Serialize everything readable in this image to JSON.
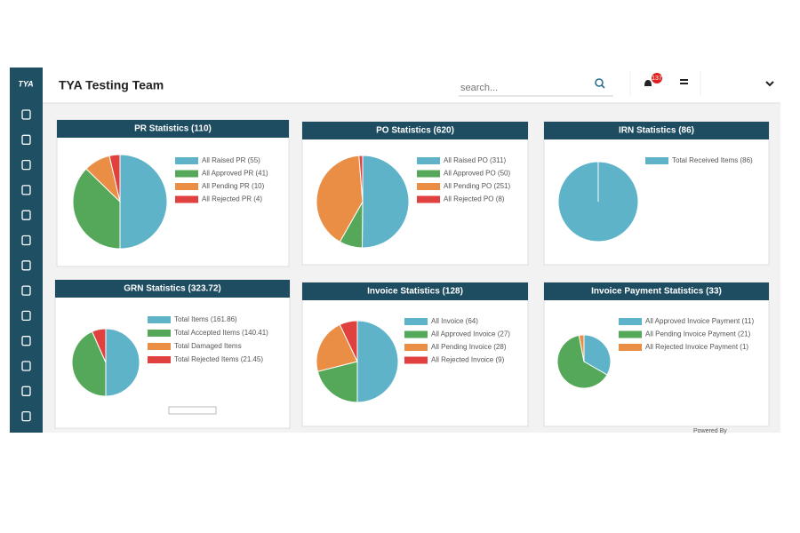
{
  "header": {
    "logo": "TYA",
    "title": "TYA Testing Team",
    "search_placeholder": "search...",
    "notification_count": "137"
  },
  "footer": {
    "text": "Powered By"
  },
  "chart_data": [
    {
      "type": "pie",
      "title": "PR Statistics (110)",
      "labels": [
        "All Raised PR (55)",
        "All Approved PR (41)",
        "All Pending PR (10)",
        "All Rejected PR (4)"
      ],
      "values": [
        55,
        41,
        10,
        4
      ],
      "colors": [
        "#5eb3c8",
        "#55a85a",
        "#e98e44",
        "#e0413f"
      ]
    },
    {
      "type": "pie",
      "title": "PO Statistics (620)",
      "labels": [
        "All Raised PO (311)",
        "All Approved PO (50)",
        "All Pending PO (251)",
        "All Rejected PO (8)"
      ],
      "values": [
        311,
        50,
        251,
        8
      ],
      "colors": [
        "#5eb3c8",
        "#55a85a",
        "#e98e44",
        "#e0413f"
      ]
    },
    {
      "type": "pie",
      "title": "IRN Statistics (86)",
      "labels": [
        "Total Received Items (86)"
      ],
      "values": [
        86
      ],
      "colors": [
        "#5eb3c8"
      ]
    },
    {
      "type": "pie",
      "title": "GRN Statistics (323.72)",
      "labels": [
        "Total Items (161.86)",
        "Total Accepted Items (140.41)",
        "Total Damaged Items",
        "Total Rejected Items (21.45)"
      ],
      "values": [
        161.86,
        140.41,
        0,
        21.45
      ],
      "colors": [
        "#5eb3c8",
        "#55a85a",
        "#e98e44",
        "#e0413f"
      ]
    },
    {
      "type": "pie",
      "title": "Invoice Statistics (128)",
      "labels": [
        "All Invoice (64)",
        "All Approved Invoice (27)",
        "All Pending Invoice (28)",
        "All Rejected Invoice (9)"
      ],
      "values": [
        64,
        27,
        28,
        9
      ],
      "colors": [
        "#5eb3c8",
        "#55a85a",
        "#e98e44",
        "#e0413f"
      ]
    },
    {
      "type": "pie",
      "title": "Invoice Payment Statistics (33)",
      "labels": [
        "All Approved Invoice Payment (11)",
        "All Pending Invoice Payment (21)",
        "All Rejected Invoice Payment (1)"
      ],
      "values": [
        11,
        21,
        1
      ],
      "colors": [
        "#5eb3c8",
        "#55a85a",
        "#e98e44"
      ]
    }
  ]
}
